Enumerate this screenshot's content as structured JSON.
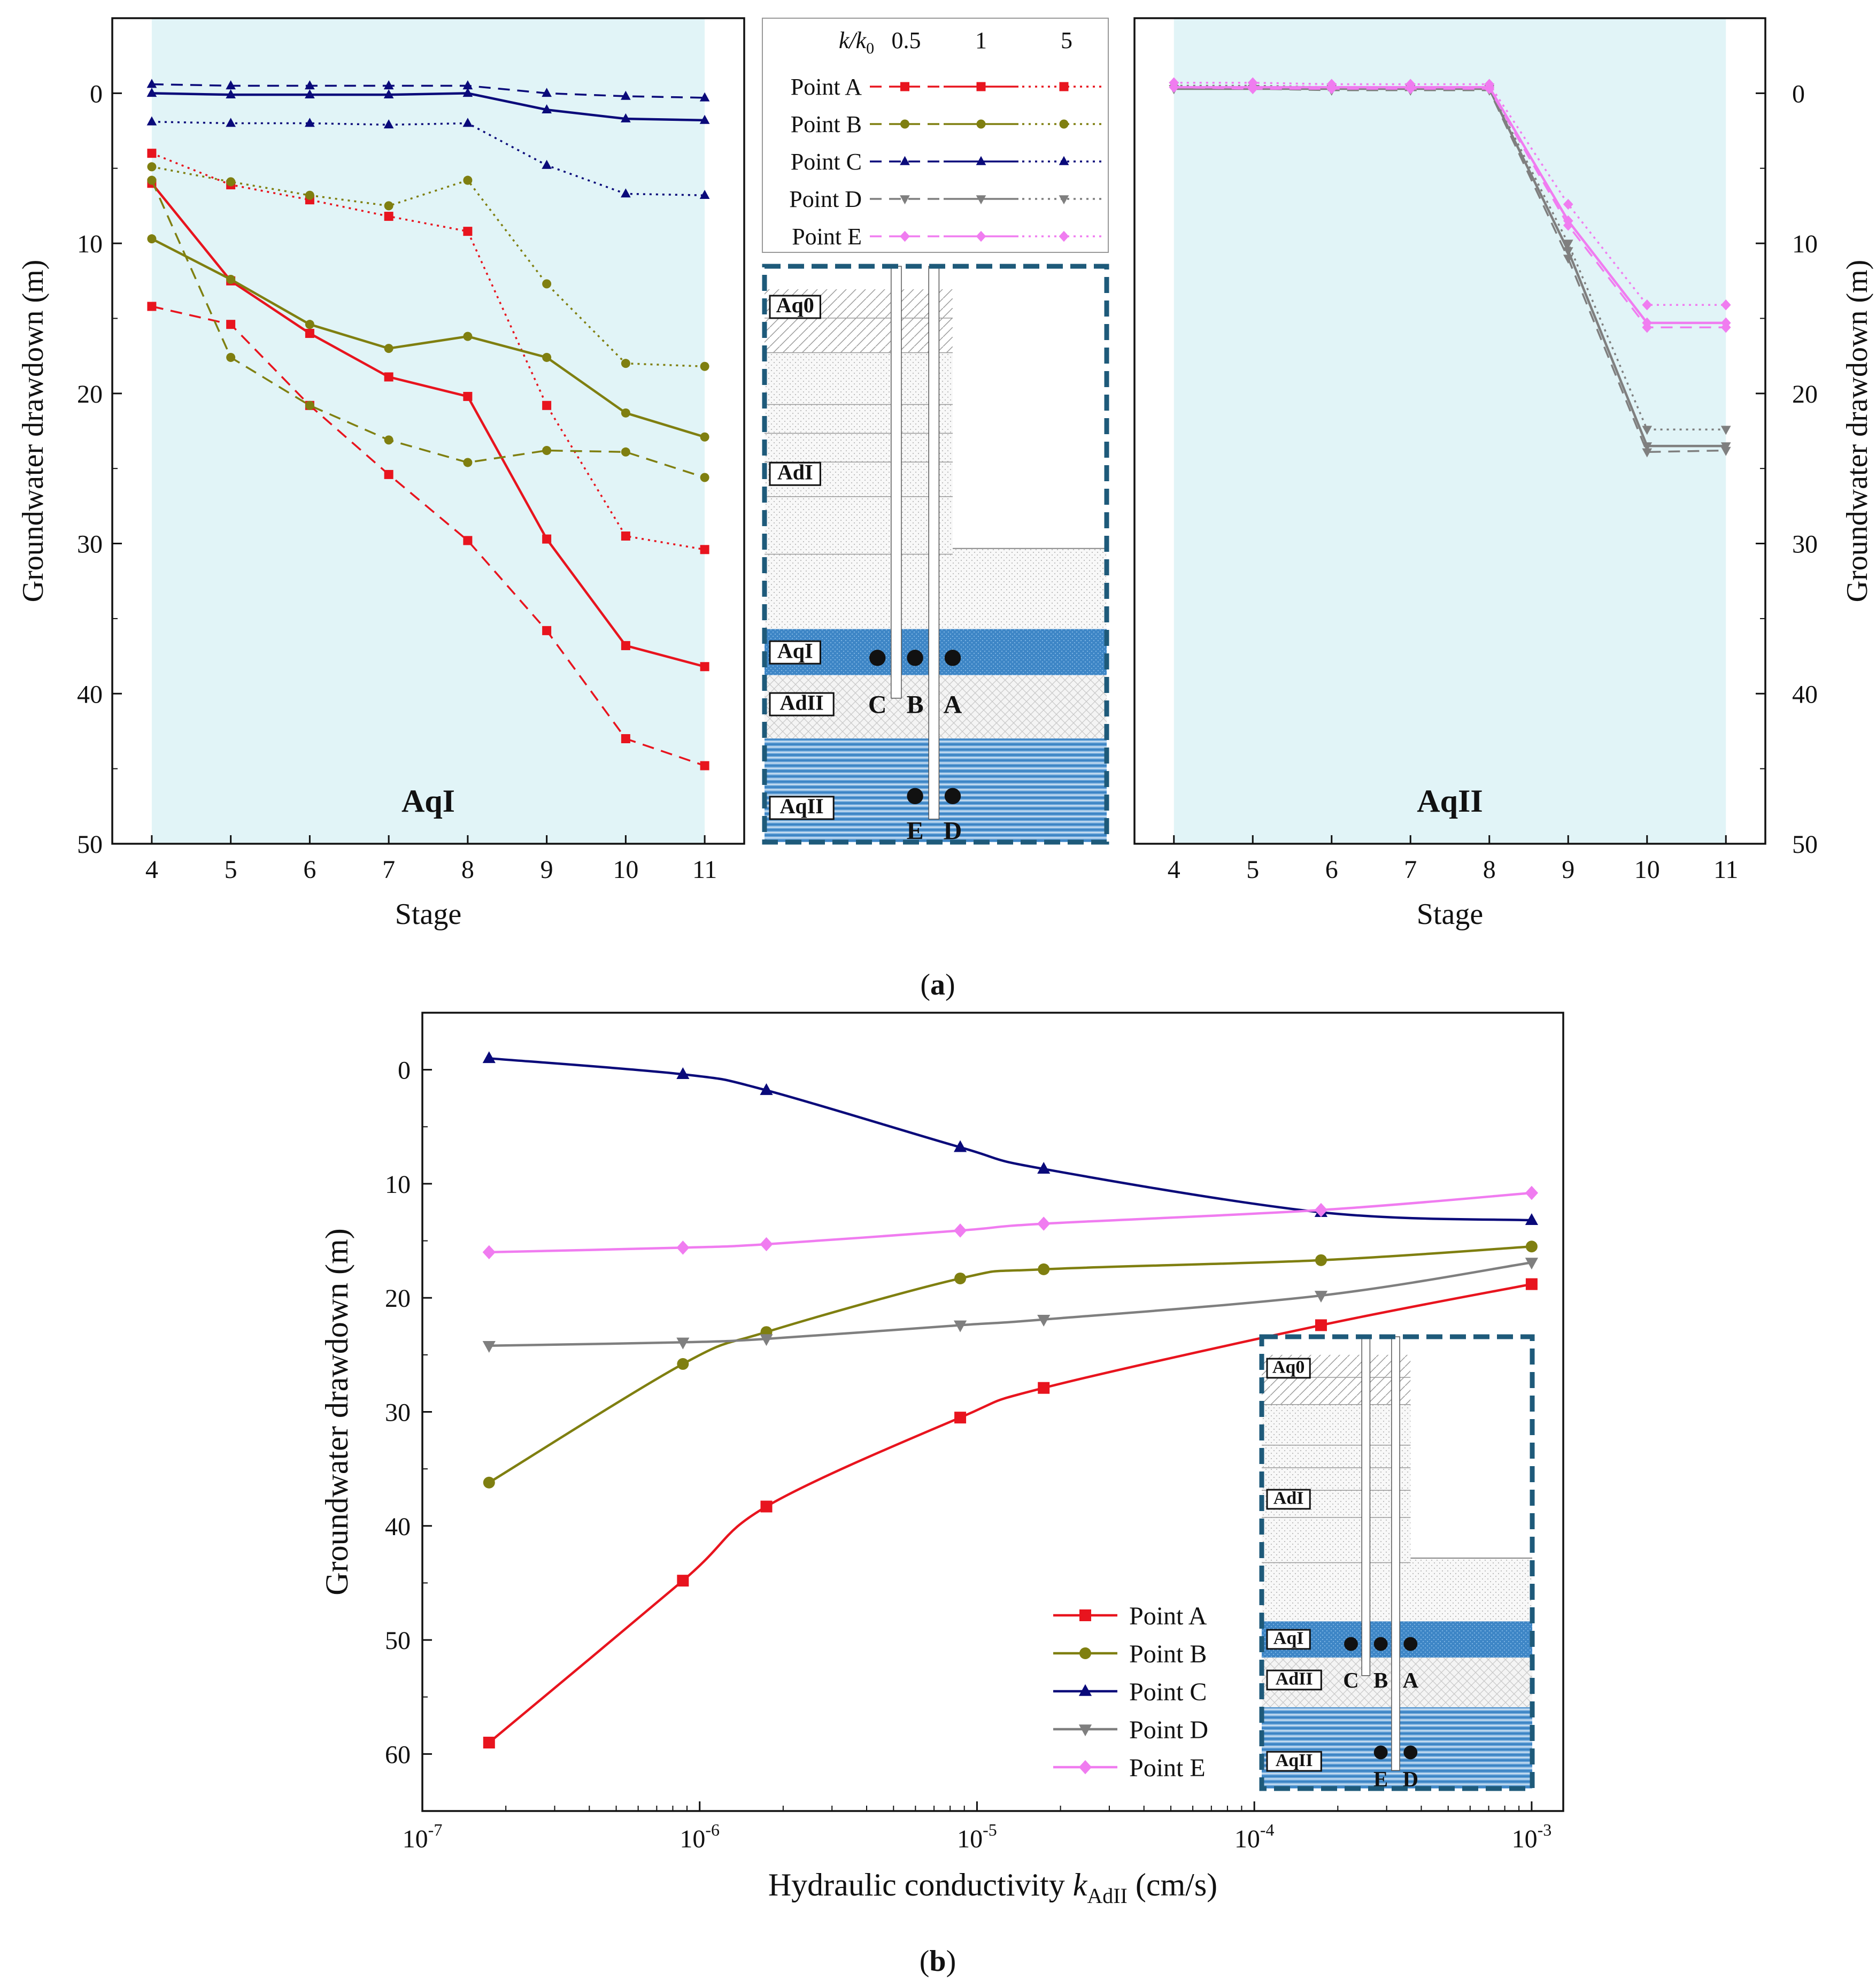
{
  "panel_labels": {
    "a": "(a)",
    "b": "(b)"
  },
  "colors": {
    "A": "#e8141e",
    "B": "#7f7f10",
    "C": "#0a0a7a",
    "D": "#7f7f7f",
    "E": "#f07cf0",
    "plot_bg": "#e1f4f7",
    "aquifer": "#3e86c6",
    "frame": "#1e5a7a"
  },
  "legend_a": {
    "ratio_label": "k/k0",
    "ratios": [
      "0.5",
      "1",
      "5"
    ],
    "points": [
      "Point A",
      "Point B",
      "Point C",
      "Point D",
      "Point E"
    ]
  },
  "legend_b": {
    "points": [
      "Point A",
      "Point B",
      "Point C",
      "Point D",
      "Point E"
    ]
  },
  "schematic": {
    "layers": [
      "Aq0",
      "AdI",
      "AqI",
      "AdII",
      "AqII"
    ],
    "points_top": [
      "C",
      "B",
      "A"
    ],
    "points_bottom": [
      "E",
      "D"
    ]
  },
  "chart_data": [
    {
      "id": "a-left",
      "type": "line",
      "annotation": "AqI",
      "xlabel": "Stage",
      "ylabel": "Groundwater drawdown (m)",
      "x": [
        4,
        5,
        6,
        7,
        8,
        9,
        10,
        11
      ],
      "xlim": [
        3.5,
        11.5
      ],
      "ylim": [
        -5,
        50
      ],
      "y_inverted": true,
      "yticks": [
        0,
        10,
        20,
        30,
        40,
        50
      ],
      "shaded_x": [
        4,
        11
      ],
      "series": [
        {
          "name": "Point A",
          "ratio": "0.5",
          "point": "A",
          "values": [
            14.2,
            15.4,
            20.8,
            25.4,
            29.8,
            35.8,
            43.0,
            44.8
          ]
        },
        {
          "name": "Point A",
          "ratio": "1",
          "point": "A",
          "values": [
            6.0,
            12.5,
            16.0,
            18.9,
            20.2,
            29.7,
            36.8,
            38.2
          ]
        },
        {
          "name": "Point A",
          "ratio": "5",
          "point": "A",
          "values": [
            4.0,
            6.1,
            7.1,
            8.2,
            9.2,
            20.8,
            29.5,
            30.4
          ]
        },
        {
          "name": "Point B",
          "ratio": "0.5",
          "point": "B",
          "values": [
            5.8,
            17.6,
            20.8,
            23.1,
            24.6,
            23.8,
            23.9,
            25.6
          ]
        },
        {
          "name": "Point B",
          "ratio": "1",
          "point": "B",
          "values": [
            9.7,
            12.4,
            15.4,
            17.0,
            16.2,
            17.6,
            21.3,
            22.9
          ]
        },
        {
          "name": "Point B",
          "ratio": "5",
          "point": "B",
          "values": [
            4.9,
            5.9,
            6.8,
            7.5,
            5.8,
            12.7,
            18.0,
            18.2
          ]
        },
        {
          "name": "Point C",
          "ratio": "0.5",
          "point": "C",
          "values": [
            -0.6,
            -0.5,
            -0.5,
            -0.5,
            -0.5,
            0.0,
            0.2,
            0.3
          ]
        },
        {
          "name": "Point C",
          "ratio": "1",
          "point": "C",
          "values": [
            0.0,
            0.1,
            0.1,
            0.1,
            0.0,
            1.1,
            1.7,
            1.8
          ]
        },
        {
          "name": "Point C",
          "ratio": "5",
          "point": "C",
          "values": [
            1.9,
            2.0,
            2.0,
            2.1,
            2.0,
            4.8,
            6.7,
            6.8
          ]
        }
      ]
    },
    {
      "id": "a-right",
      "type": "line",
      "annotation": "AqII",
      "xlabel": "Stage",
      "ylabel": "Groundwater drawdown (m)",
      "x": [
        4,
        5,
        6,
        7,
        8,
        9,
        10,
        11
      ],
      "xlim": [
        3.5,
        11.5
      ],
      "ylim": [
        -5,
        50
      ],
      "y_inverted": true,
      "yticks": [
        0,
        10,
        20,
        30,
        40,
        50
      ],
      "shaded_x": [
        4,
        11
      ],
      "series": [
        {
          "name": "Point D",
          "ratio": "0.5",
          "point": "D",
          "values": [
            -0.3,
            -0.3,
            -0.2,
            -0.2,
            -0.2,
            11.0,
            23.9,
            23.8
          ]
        },
        {
          "name": "Point D",
          "ratio": "1",
          "point": "D",
          "values": [
            -0.3,
            -0.3,
            -0.3,
            -0.3,
            -0.3,
            10.5,
            23.5,
            23.5
          ]
        },
        {
          "name": "Point D",
          "ratio": "5",
          "point": "D",
          "values": [
            -0.5,
            -0.5,
            -0.4,
            -0.4,
            -0.4,
            10.0,
            22.4,
            22.4
          ]
        },
        {
          "name": "Point E",
          "ratio": "0.5",
          "point": "E",
          "values": [
            -0.4,
            -0.3,
            -0.3,
            -0.3,
            -0.3,
            8.8,
            15.6,
            15.6
          ]
        },
        {
          "name": "Point E",
          "ratio": "1",
          "point": "E",
          "values": [
            -0.4,
            -0.4,
            -0.4,
            -0.4,
            -0.4,
            8.5,
            15.3,
            15.3
          ]
        },
        {
          "name": "Point E",
          "ratio": "5",
          "point": "E",
          "values": [
            -0.7,
            -0.7,
            -0.6,
            -0.6,
            -0.6,
            7.4,
            14.1,
            14.1
          ]
        }
      ]
    },
    {
      "id": "b",
      "type": "line",
      "xlabel": "Hydraulic conductivity kAdII (cm/s)",
      "xlabel_parts": {
        "main": "Hydraulic conductivity ",
        "var": "k",
        "sub": "AdII",
        "unit": " (cm/s)"
      },
      "ylabel": "Groundwater drawdown (m)",
      "x_scale": "log",
      "xlim": [
        1e-07,
        0.0013
      ],
      "xtick_labels": [
        {
          "value": 1e-07,
          "base": "10",
          "exp": "-7"
        },
        {
          "value": 1e-06,
          "base": "10",
          "exp": "-6"
        },
        {
          "value": 1e-05,
          "base": "10",
          "exp": "-5"
        },
        {
          "value": 0.0001,
          "base": "10",
          "exp": "-4"
        },
        {
          "value": 0.001,
          "base": "10",
          "exp": "-3"
        }
      ],
      "ylim": [
        -5,
        65
      ],
      "y_inverted": true,
      "yticks": [
        0,
        10,
        20,
        30,
        40,
        50,
        60
      ],
      "x": [
        1.74e-07,
        8.7e-07,
        1.74e-06,
        8.7e-06,
        1.74e-05,
        0.000174,
        0.001
      ],
      "legend_position": "lower-right",
      "series": [
        {
          "name": "Point A",
          "point": "A",
          "values": [
            59.0,
            44.8,
            38.3,
            30.5,
            27.9,
            22.4,
            18.8
          ]
        },
        {
          "name": "Point B",
          "point": "B",
          "values": [
            36.2,
            25.8,
            23.0,
            18.3,
            17.5,
            16.7,
            15.5
          ]
        },
        {
          "name": "Point C",
          "point": "C",
          "values": [
            -1.0,
            0.4,
            1.8,
            6.8,
            8.7,
            12.5,
            13.2
          ]
        },
        {
          "name": "Point D",
          "point": "D",
          "values": [
            24.2,
            23.9,
            23.6,
            22.4,
            21.9,
            19.8,
            16.9
          ]
        },
        {
          "name": "Point E",
          "point": "E",
          "values": [
            16.0,
            15.6,
            15.3,
            14.1,
            13.5,
            12.3,
            10.8
          ]
        }
      ]
    }
  ]
}
